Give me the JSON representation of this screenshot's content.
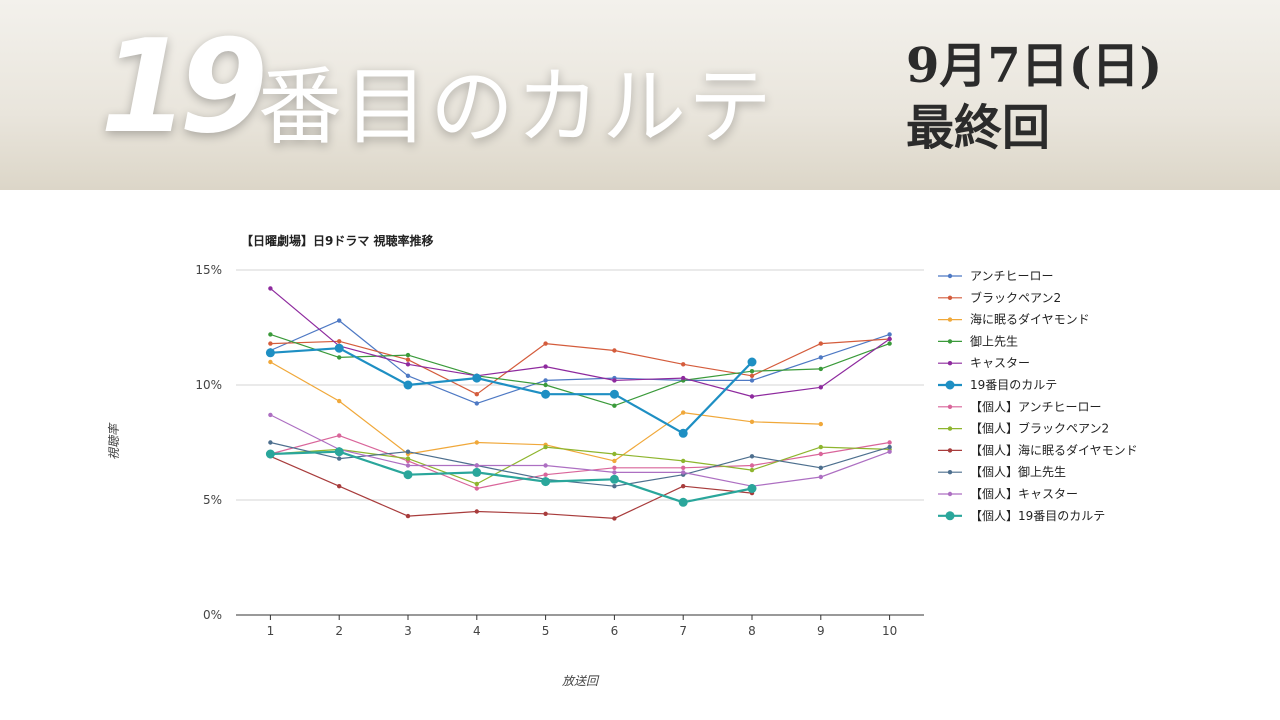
{
  "banner": {
    "number": "19",
    "title": "番目のカルテ",
    "date": "9月7日(日)",
    "subtitle": "最終回"
  },
  "chart_data": {
    "type": "line",
    "title": "【日曜劇場】日9ドラマ 視聴率推移",
    "xlabel": "放送回",
    "ylabel": "視聴率",
    "x": [
      1,
      2,
      3,
      4,
      5,
      6,
      7,
      8,
      9,
      10
    ],
    "ylim": [
      0,
      15
    ],
    "yticks": [
      0,
      5,
      10,
      15
    ],
    "ytick_labels": [
      "0%",
      "5%",
      "10%",
      "15%"
    ],
    "grid": true,
    "legend_position": "right",
    "series": [
      {
        "name": "アンチヒーロー",
        "color": "#4e79c4",
        "emphasis": false,
        "values": [
          11.5,
          12.8,
          10.4,
          9.2,
          10.2,
          10.3,
          10.2,
          10.2,
          11.2,
          12.2
        ]
      },
      {
        "name": "ブラックペアン2",
        "color": "#d45c3c",
        "emphasis": false,
        "values": [
          11.8,
          11.9,
          11.1,
          9.6,
          11.8,
          11.5,
          10.9,
          10.4,
          11.8,
          12.0
        ]
      },
      {
        "name": "海に眠るダイヤモンド",
        "color": "#f0a83a",
        "emphasis": false,
        "values": [
          11.0,
          9.3,
          7.0,
          7.5,
          7.4,
          6.7,
          8.8,
          8.4,
          8.3,
          null
        ]
      },
      {
        "name": "御上先生",
        "color": "#3a9a3a",
        "emphasis": false,
        "values": [
          12.2,
          11.2,
          11.3,
          10.4,
          10.0,
          9.1,
          10.2,
          10.6,
          10.7,
          11.8
        ]
      },
      {
        "name": "キャスター",
        "color": "#8e2a9e",
        "emphasis": false,
        "values": [
          14.2,
          11.7,
          10.9,
          10.4,
          10.8,
          10.2,
          10.3,
          9.5,
          9.9,
          12.0
        ]
      },
      {
        "name": "19番目のカルテ",
        "color": "#1e8fc3",
        "emphasis": true,
        "values": [
          11.4,
          11.6,
          10.0,
          10.3,
          9.6,
          9.6,
          7.9,
          11.0,
          null,
          null
        ]
      },
      {
        "name": "【個人】アンチヒーロー",
        "color": "#d9659a",
        "emphasis": false,
        "values": [
          7.0,
          7.8,
          6.7,
          5.5,
          6.1,
          6.4,
          6.4,
          6.5,
          7.0,
          7.5
        ]
      },
      {
        "name": "【個人】ブラックペアン2",
        "color": "#8eb52e",
        "emphasis": false,
        "values": [
          7.0,
          7.2,
          6.8,
          5.7,
          7.3,
          7.0,
          6.7,
          6.3,
          7.3,
          7.2
        ]
      },
      {
        "name": "【個人】海に眠るダイヤモンド",
        "color": "#a83c3c",
        "emphasis": false,
        "values": [
          6.9,
          5.6,
          4.3,
          4.5,
          4.4,
          4.2,
          5.6,
          5.3,
          null,
          null
        ]
      },
      {
        "name": "【個人】御上先生",
        "color": "#4d6f8e",
        "emphasis": false,
        "values": [
          7.5,
          6.8,
          7.1,
          6.5,
          5.9,
          5.6,
          6.1,
          6.9,
          6.4,
          7.3
        ]
      },
      {
        "name": "【個人】キャスター",
        "color": "#ad6fc2",
        "emphasis": false,
        "values": [
          8.7,
          7.2,
          6.5,
          6.5,
          6.5,
          6.2,
          6.2,
          5.6,
          6.0,
          7.1
        ]
      },
      {
        "name": "【個人】19番目のカルテ",
        "color": "#2aa69b",
        "emphasis": true,
        "values": [
          7.0,
          7.1,
          6.1,
          6.2,
          5.8,
          5.9,
          4.9,
          5.5,
          null,
          null
        ]
      }
    ]
  }
}
